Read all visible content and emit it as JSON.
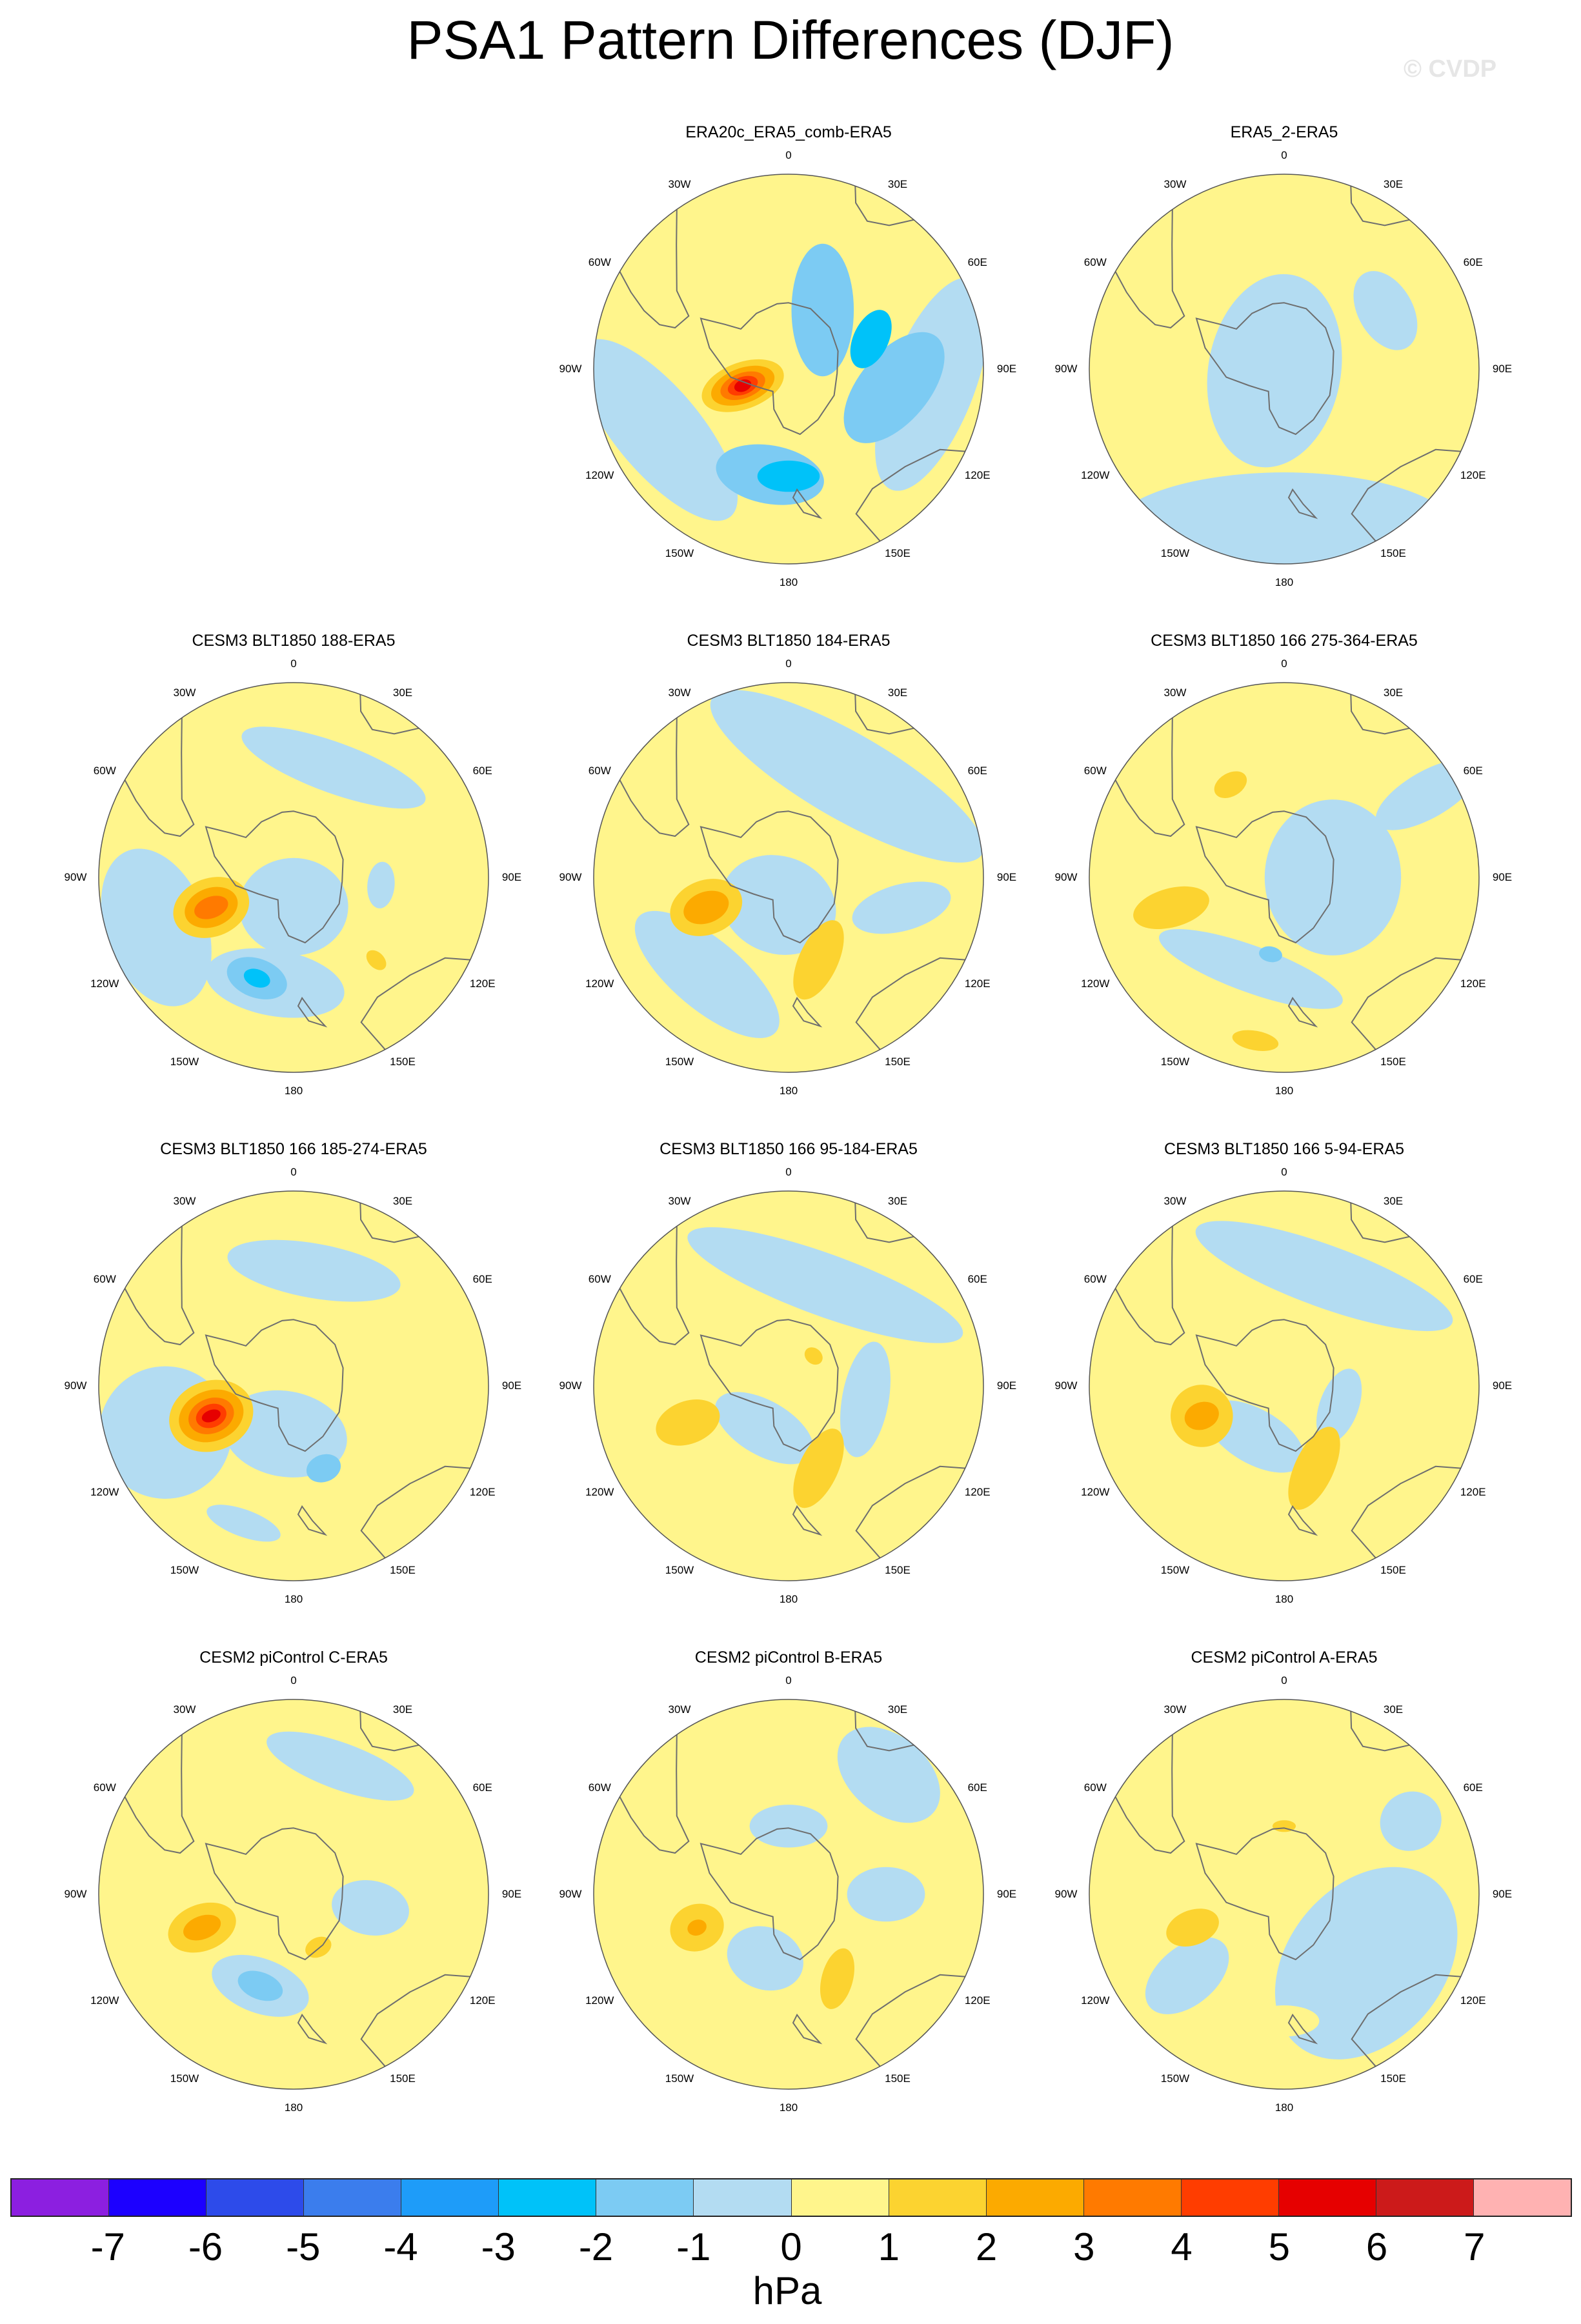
{
  "title": "PSA1 Pattern Differences (DJF)",
  "watermark": "© CVDP",
  "longitude_labels": [
    "0",
    "30E",
    "60E",
    "90E",
    "120E",
    "150E",
    "180",
    "150W",
    "120W",
    "90W",
    "60W",
    "30W"
  ],
  "colors": {
    "land_outline": "#6e6e6e",
    "neutral_positive": "#fff58c",
    "neutral_negative": "#b3dcf2"
  },
  "panels": [
    {
      "id": "era20c",
      "title": "ERA20c_ERA5_comb-ERA5",
      "row": 0,
      "col": 1,
      "base": 0,
      "blobs": [
        {
          "lon": 96,
          "r": 0.74,
          "a": 0.58,
          "b": 0.22,
          "rot": 15,
          "v": -1
        },
        {
          "lon": 245,
          "r": 0.74,
          "a": 0.58,
          "b": 0.22,
          "rot": -15,
          "v": -1
        },
        {
          "lon": 100,
          "r": 0.55,
          "a": 0.34,
          "b": 0.18,
          "rot": 30,
          "v": -2
        },
        {
          "lon": 190,
          "r": 0.55,
          "a": 0.28,
          "b": 0.15,
          "rot": 0,
          "v": -2
        },
        {
          "lon": 30,
          "r": 0.35,
          "a": 0.34,
          "b": 0.16,
          "rot": 60,
          "v": -2
        },
        {
          "lon": 70,
          "r": 0.45,
          "a": 0.16,
          "b": 0.09,
          "rot": 45,
          "v": -3
        },
        {
          "lon": 180,
          "r": 0.55,
          "a": 0.16,
          "b": 0.08,
          "rot": 0,
          "v": -3
        },
        {
          "lon": 250,
          "r": 0.25,
          "a": 0.12,
          "b": 0.22,
          "rot": 0,
          "v": 1
        },
        {
          "lon": 250,
          "r": 0.25,
          "a": 0.09,
          "b": 0.17,
          "rot": 0,
          "v": 2
        },
        {
          "lon": 250,
          "r": 0.25,
          "a": 0.065,
          "b": 0.12,
          "rot": 0,
          "v": 3
        },
        {
          "lon": 250,
          "r": 0.25,
          "a": 0.045,
          "b": 0.08,
          "rot": 0,
          "v": 4
        },
        {
          "lon": 250,
          "r": 0.25,
          "a": 0.03,
          "b": 0.045,
          "rot": 0,
          "v": 5
        }
      ]
    },
    {
      "id": "era5-2",
      "title": "ERA5_2-ERA5",
      "row": 0,
      "col": 2,
      "base": 0,
      "blobs": [
        {
          "lon": 180,
          "r": 0.85,
          "a": 0.9,
          "b": 0.32,
          "rot": 0,
          "v": -1
        },
        {
          "lon": 260,
          "r": 0.05,
          "a": 0.5,
          "b": 0.34,
          "rot": 20,
          "v": -1
        },
        {
          "lon": 60,
          "r": 0.6,
          "a": 0.22,
          "b": 0.14,
          "rot": 0,
          "v": -1
        }
      ]
    },
    {
      "id": "blt-188",
      "title": "CESM3 BLT1850 188-ERA5",
      "row": 1,
      "col": 0,
      "base": 0,
      "blobs": [
        {
          "lon": 250,
          "r": 0.75,
          "a": 0.42,
          "b": 0.26,
          "rot": 0,
          "v": -1
        },
        {
          "lon": 20,
          "r": 0.6,
          "a": 0.5,
          "b": 0.13,
          "rot": 0,
          "v": -1
        },
        {
          "lon": 180,
          "r": 0.15,
          "a": 0.28,
          "b": 0.25,
          "rot": 0,
          "v": -1
        },
        {
          "lon": 190,
          "r": 0.55,
          "a": 0.36,
          "b": 0.17,
          "rot": 0,
          "v": -1
        },
        {
          "lon": 95,
          "r": 0.45,
          "a": 0.12,
          "b": 0.07,
          "rot": 0,
          "v": -1
        },
        {
          "lon": 250,
          "r": 0.45,
          "a": 0.15,
          "b": 0.2,
          "rot": 0,
          "v": 1
        },
        {
          "lon": 250,
          "r": 0.45,
          "a": 0.1,
          "b": 0.14,
          "rot": 0,
          "v": 2
        },
        {
          "lon": 250,
          "r": 0.45,
          "a": 0.055,
          "b": 0.09,
          "rot": 0,
          "v": 3
        },
        {
          "lon": 200,
          "r": 0.55,
          "a": 0.16,
          "b": 0.1,
          "rot": 0,
          "v": -2
        },
        {
          "lon": 200,
          "r": 0.55,
          "a": 0.07,
          "b": 0.045,
          "rot": 0,
          "v": -3
        },
        {
          "lon": 135,
          "r": 0.6,
          "a": 0.04,
          "b": 0.06,
          "rot": 0,
          "v": 1
        }
      ]
    },
    {
      "id": "blt-184",
      "title": "CESM3 BLT1850 184-ERA5",
      "row": 1,
      "col": 1,
      "base": 0,
      "blobs": [
        {
          "lon": 30,
          "r": 0.6,
          "a": 0.8,
          "b": 0.22,
          "rot": 0,
          "v": -1
        },
        {
          "lon": 200,
          "r": 0.15,
          "a": 0.3,
          "b": 0.25,
          "rot": 0,
          "v": -1
        },
        {
          "lon": 220,
          "r": 0.65,
          "a": 0.46,
          "b": 0.18,
          "rot": 0,
          "v": -1
        },
        {
          "lon": 105,
          "r": 0.6,
          "a": 0.26,
          "b": 0.12,
          "rot": 60,
          "v": -1
        },
        {
          "lon": 250,
          "r": 0.45,
          "a": 0.14,
          "b": 0.19,
          "rot": 0,
          "v": 1
        },
        {
          "lon": 250,
          "r": 0.45,
          "a": 0.08,
          "b": 0.12,
          "rot": 0,
          "v": 2
        },
        {
          "lon": 160,
          "r": 0.45,
          "a": 0.22,
          "b": 0.1,
          "rot": -45,
          "v": 1
        }
      ]
    },
    {
      "id": "blt-275",
      "title": "CESM3 BLT1850 166 275-364-ERA5",
      "row": 1,
      "col": 2,
      "base": 0,
      "blobs": [
        {
          "lon": 90,
          "r": 0.25,
          "a": 0.4,
          "b": 0.35,
          "rot": 0,
          "v": -1
        },
        {
          "lon": 200,
          "r": 0.5,
          "a": 0.5,
          "b": 0.12,
          "rot": 0,
          "v": -1
        },
        {
          "lon": 60,
          "r": 0.85,
          "a": 0.12,
          "b": 0.3,
          "rot": 0,
          "v": -1
        },
        {
          "lon": 190,
          "r": 0.4,
          "a": 0.06,
          "b": 0.04,
          "rot": 0,
          "v": -2
        },
        {
          "lon": 255,
          "r": 0.6,
          "a": 0.1,
          "b": 0.2,
          "rot": 0,
          "v": 1
        },
        {
          "lon": 330,
          "r": 0.55,
          "a": 0.09,
          "b": 0.06,
          "rot": 0,
          "v": 1
        },
        {
          "lon": 190,
          "r": 0.85,
          "a": 0.12,
          "b": 0.05,
          "rot": 0,
          "v": 1
        }
      ]
    },
    {
      "id": "blt-185",
      "title": "CESM3 BLT1850 166 185-274-ERA5",
      "row": 2,
      "col": 0,
      "base": 0,
      "blobs": [
        {
          "lon": 250,
          "r": 0.7,
          "a": 0.34,
          "b": 0.34,
          "rot": 0,
          "v": -1
        },
        {
          "lon": 10,
          "r": 0.6,
          "a": 0.45,
          "b": 0.14,
          "rot": 0,
          "v": -1
        },
        {
          "lon": 190,
          "r": 0.25,
          "a": 0.32,
          "b": 0.22,
          "rot": 0,
          "v": -1
        },
        {
          "lon": 200,
          "r": 0.75,
          "a": 0.2,
          "b": 0.07,
          "rot": 0,
          "v": -1
        },
        {
          "lon": 160,
          "r": 0.45,
          "a": 0.09,
          "b": 0.07,
          "rot": 0,
          "v": -2
        },
        {
          "lon": 250,
          "r": 0.45,
          "a": 0.18,
          "b": 0.22,
          "rot": 0,
          "v": 1
        },
        {
          "lon": 250,
          "r": 0.45,
          "a": 0.13,
          "b": 0.17,
          "rot": 0,
          "v": 2
        },
        {
          "lon": 250,
          "r": 0.45,
          "a": 0.09,
          "b": 0.12,
          "rot": 0,
          "v": 3
        },
        {
          "lon": 250,
          "r": 0.45,
          "a": 0.06,
          "b": 0.08,
          "rot": 0,
          "v": 4
        },
        {
          "lon": 250,
          "r": 0.45,
          "a": 0.03,
          "b": 0.05,
          "rot": 0,
          "v": 5
        }
      ]
    },
    {
      "id": "blt-95",
      "title": "CESM3 BLT1850 166 95-184-ERA5",
      "row": 2,
      "col": 1,
      "base": 0,
      "blobs": [
        {
          "lon": 20,
          "r": 0.55,
          "a": 0.75,
          "b": 0.16,
          "rot": 0,
          "v": -1
        },
        {
          "lon": 100,
          "r": 0.4,
          "a": 0.3,
          "b": 0.12,
          "rot": 0,
          "v": -1
        },
        {
          "lon": 210,
          "r": 0.25,
          "a": 0.28,
          "b": 0.14,
          "rot": 0,
          "v": -1
        },
        {
          "lon": 250,
          "r": 0.55,
          "a": 0.11,
          "b": 0.17,
          "rot": 0,
          "v": 1
        },
        {
          "lon": 160,
          "r": 0.45,
          "a": 0.22,
          "b": 0.1,
          "rot": -45,
          "v": 1
        },
        {
          "lon": 40,
          "r": 0.2,
          "a": 0.05,
          "b": 0.04,
          "rot": 0,
          "v": 1
        }
      ]
    },
    {
      "id": "blt-5",
      "title": "CESM3 BLT1850 166 5-94-ERA5",
      "row": 2,
      "col": 2,
      "base": 0,
      "blobs": [
        {
          "lon": 20,
          "r": 0.6,
          "a": 0.7,
          "b": 0.16,
          "rot": 0,
          "v": -1
        },
        {
          "lon": 110,
          "r": 0.3,
          "a": 0.2,
          "b": 0.1,
          "rot": 0,
          "v": -1
        },
        {
          "lon": 210,
          "r": 0.3,
          "a": 0.28,
          "b": 0.14,
          "rot": 0,
          "v": -1
        },
        {
          "lon": 250,
          "r": 0.45,
          "a": 0.16,
          "b": 0.16,
          "rot": 0,
          "v": 1
        },
        {
          "lon": 250,
          "r": 0.45,
          "a": 0.07,
          "b": 0.09,
          "rot": 0,
          "v": 2
        },
        {
          "lon": 160,
          "r": 0.45,
          "a": 0.23,
          "b": 0.1,
          "rot": -45,
          "v": 1
        }
      ]
    },
    {
      "id": "picontrol-c",
      "title": "CESM2 piControl C-ERA5",
      "row": 3,
      "col": 0,
      "base": 0,
      "blobs": [
        {
          "lon": 20,
          "r": 0.7,
          "a": 0.4,
          "b": 0.12,
          "rot": 0,
          "v": -1
        },
        {
          "lon": 100,
          "r": 0.4,
          "a": 0.14,
          "b": 0.2,
          "rot": 0,
          "v": -1
        },
        {
          "lon": 200,
          "r": 0.5,
          "a": 0.26,
          "b": 0.14,
          "rot": 0,
          "v": -1
        },
        {
          "lon": 200,
          "r": 0.5,
          "a": 0.12,
          "b": 0.07,
          "rot": 0,
          "v": -2
        },
        {
          "lon": 250,
          "r": 0.5,
          "a": 0.12,
          "b": 0.18,
          "rot": 0,
          "v": 1
        },
        {
          "lon": 250,
          "r": 0.5,
          "a": 0.06,
          "b": 0.1,
          "rot": 0,
          "v": 2
        },
        {
          "lon": 155,
          "r": 0.3,
          "a": 0.07,
          "b": 0.05,
          "rot": 0,
          "v": 1
        }
      ]
    },
    {
      "id": "picontrol-b",
      "title": "CESM2 piControl B-ERA5",
      "row": 3,
      "col": 1,
      "base": 0,
      "blobs": [
        {
          "lon": 40,
          "r": 0.8,
          "a": 0.3,
          "b": 0.2,
          "rot": 0,
          "v": -1
        },
        {
          "lon": 90,
          "r": 0.5,
          "a": 0.14,
          "b": 0.2,
          "rot": 0,
          "v": -1
        },
        {
          "lon": 200,
          "r": 0.35,
          "a": 0.2,
          "b": 0.16,
          "rot": 0,
          "v": -1
        },
        {
          "lon": 0,
          "r": 0.35,
          "a": 0.2,
          "b": 0.11,
          "rot": 0,
          "v": -1
        },
        {
          "lon": 250,
          "r": 0.5,
          "a": 0.12,
          "b": 0.14,
          "rot": 0,
          "v": 1
        },
        {
          "lon": 250,
          "r": 0.5,
          "a": 0.04,
          "b": 0.05,
          "rot": 0,
          "v": 2
        },
        {
          "lon": 150,
          "r": 0.5,
          "a": 0.16,
          "b": 0.08,
          "rot": -45,
          "v": 1
        }
      ]
    },
    {
      "id": "picontrol-a",
      "title": "CESM2 piControl A-ERA5",
      "row": 3,
      "col": 2,
      "base": 0,
      "blobs": [
        {
          "lon": 130,
          "r": 0.55,
          "a": 0.55,
          "b": 0.4,
          "rot": 0,
          "v": -1
        },
        {
          "lon": 60,
          "r": 0.75,
          "a": 0.15,
          "b": 0.16,
          "rot": 0,
          "v": -1
        },
        {
          "lon": 230,
          "r": 0.65,
          "a": 0.15,
          "b": 0.25,
          "rot": 0,
          "v": -1
        },
        {
          "lon": 250,
          "r": 0.5,
          "a": 0.09,
          "b": 0.14,
          "rot": 0,
          "v": 1
        },
        {
          "lon": 180,
          "r": 0.65,
          "a": 0.18,
          "b": 0.08,
          "rot": 0,
          "v": 0
        },
        {
          "lon": 0,
          "r": 0.35,
          "a": 0.06,
          "b": 0.03,
          "rot": 0,
          "v": 1
        }
      ]
    }
  ],
  "colorbar": {
    "unit": "hPa",
    "labels": [
      "-7",
      "-6",
      "-5",
      "-4",
      "-3",
      "-2",
      "-1",
      "0",
      "1",
      "2",
      "3",
      "4",
      "5",
      "6",
      "7"
    ],
    "colors": [
      "#8c1fe0",
      "#1c00ff",
      "#2d4bea",
      "#3b7ded",
      "#1e9cf9",
      "#00c2f9",
      "#7ccbf3",
      "#b3dcf2",
      "#fff58c",
      "#fcd330",
      "#fcaa00",
      "#ff7a00",
      "#ff3d00",
      "#e60000",
      "#cc1a1a",
      "#ffb2b2"
    ]
  }
}
